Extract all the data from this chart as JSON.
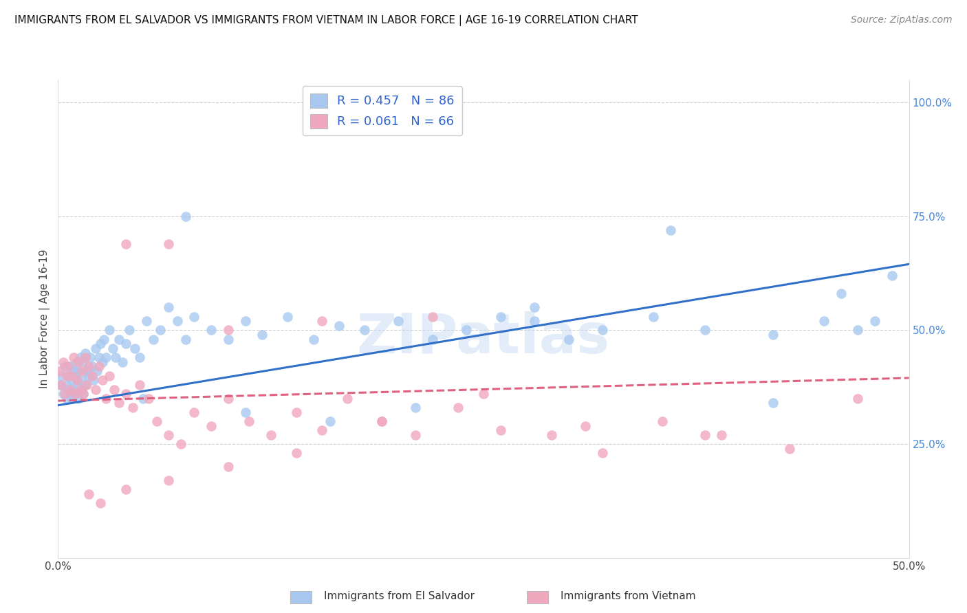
{
  "title": "IMMIGRANTS FROM EL SALVADOR VS IMMIGRANTS FROM VIETNAM IN LABOR FORCE | AGE 16-19 CORRELATION CHART",
  "source": "Source: ZipAtlas.com",
  "ylabel": "In Labor Force | Age 16-19",
  "xlim": [
    0.0,
    0.5
  ],
  "ylim": [
    0.0,
    1.05
  ],
  "xticks": [
    0.0,
    0.1,
    0.2,
    0.3,
    0.4,
    0.5
  ],
  "xticklabels": [
    "0.0%",
    "",
    "",
    "",
    "",
    "50.0%"
  ],
  "yticks_right": [
    0.25,
    0.5,
    0.75,
    1.0
  ],
  "yticklabels_right": [
    "25.0%",
    "50.0%",
    "75.0%",
    "100.0%"
  ],
  "legend_r1": "R = 0.457",
  "legend_n1": "N = 86",
  "legend_r2": "R = 0.061",
  "legend_n2": "N = 66",
  "label1": "Immigrants from El Salvador",
  "label2": "Immigrants from Vietnam",
  "color1": "#a8c8f0",
  "color2": "#f0a8be",
  "line_color1": "#3070c8",
  "line_color2": "#e06080",
  "watermark": "ZIPatlas",
  "blue_scatter_x": [
    0.001,
    0.002,
    0.003,
    0.004,
    0.005,
    0.005,
    0.006,
    0.006,
    0.007,
    0.007,
    0.008,
    0.008,
    0.009,
    0.009,
    0.01,
    0.01,
    0.011,
    0.011,
    0.012,
    0.012,
    0.013,
    0.013,
    0.014,
    0.015,
    0.015,
    0.016,
    0.016,
    0.017,
    0.018,
    0.019,
    0.02,
    0.021,
    0.022,
    0.023,
    0.024,
    0.025,
    0.026,
    0.027,
    0.028,
    0.03,
    0.032,
    0.034,
    0.036,
    0.038,
    0.04,
    0.042,
    0.045,
    0.048,
    0.052,
    0.056,
    0.06,
    0.065,
    0.07,
    0.075,
    0.08,
    0.09,
    0.1,
    0.11,
    0.12,
    0.135,
    0.15,
    0.165,
    0.18,
    0.2,
    0.22,
    0.24,
    0.26,
    0.28,
    0.3,
    0.32,
    0.35,
    0.38,
    0.42,
    0.45,
    0.46,
    0.47,
    0.48,
    0.49,
    0.42,
    0.36,
    0.28,
    0.21,
    0.16,
    0.11,
    0.075,
    0.05
  ],
  "blue_scatter_y": [
    0.38,
    0.4,
    0.36,
    0.42,
    0.35,
    0.38,
    0.4,
    0.37,
    0.42,
    0.36,
    0.39,
    0.35,
    0.41,
    0.37,
    0.4,
    0.36,
    0.43,
    0.38,
    0.41,
    0.35,
    0.44,
    0.37,
    0.39,
    0.43,
    0.36,
    0.45,
    0.38,
    0.41,
    0.4,
    0.44,
    0.42,
    0.39,
    0.46,
    0.41,
    0.44,
    0.47,
    0.43,
    0.48,
    0.44,
    0.5,
    0.46,
    0.44,
    0.48,
    0.43,
    0.47,
    0.5,
    0.46,
    0.44,
    0.52,
    0.48,
    0.5,
    0.55,
    0.52,
    0.48,
    0.53,
    0.5,
    0.48,
    0.52,
    0.49,
    0.53,
    0.48,
    0.51,
    0.5,
    0.52,
    0.48,
    0.5,
    0.53,
    0.52,
    0.48,
    0.5,
    0.53,
    0.5,
    0.49,
    0.52,
    0.58,
    0.5,
    0.52,
    0.62,
    0.34,
    0.72,
    0.55,
    0.33,
    0.3,
    0.32,
    0.75,
    0.35
  ],
  "pink_scatter_x": [
    0.001,
    0.002,
    0.003,
    0.004,
    0.005,
    0.006,
    0.007,
    0.008,
    0.009,
    0.01,
    0.011,
    0.012,
    0.013,
    0.014,
    0.015,
    0.016,
    0.017,
    0.018,
    0.02,
    0.022,
    0.024,
    0.026,
    0.028,
    0.03,
    0.033,
    0.036,
    0.04,
    0.044,
    0.048,
    0.053,
    0.058,
    0.065,
    0.072,
    0.08,
    0.09,
    0.1,
    0.112,
    0.125,
    0.14,
    0.155,
    0.17,
    0.19,
    0.21,
    0.235,
    0.26,
    0.29,
    0.32,
    0.355,
    0.39,
    0.43,
    0.47,
    0.38,
    0.31,
    0.25,
    0.19,
    0.14,
    0.1,
    0.065,
    0.04,
    0.025,
    0.018,
    0.04,
    0.065,
    0.1,
    0.155,
    0.22
  ],
  "pink_scatter_y": [
    0.41,
    0.38,
    0.43,
    0.36,
    0.4,
    0.42,
    0.37,
    0.4,
    0.44,
    0.36,
    0.39,
    0.43,
    0.37,
    0.41,
    0.36,
    0.44,
    0.38,
    0.42,
    0.4,
    0.37,
    0.42,
    0.39,
    0.35,
    0.4,
    0.37,
    0.34,
    0.36,
    0.33,
    0.38,
    0.35,
    0.3,
    0.27,
    0.25,
    0.32,
    0.29,
    0.35,
    0.3,
    0.27,
    0.32,
    0.28,
    0.35,
    0.3,
    0.27,
    0.33,
    0.28,
    0.27,
    0.23,
    0.3,
    0.27,
    0.24,
    0.35,
    0.27,
    0.29,
    0.36,
    0.3,
    0.23,
    0.2,
    0.17,
    0.15,
    0.12,
    0.14,
    0.69,
    0.69,
    0.5,
    0.52,
    0.53
  ],
  "trendline1_x": [
    0.0,
    0.5
  ],
  "trendline1_y": [
    0.335,
    0.645
  ],
  "trendline2_x": [
    0.0,
    0.5
  ],
  "trendline2_y": [
    0.345,
    0.395
  ]
}
